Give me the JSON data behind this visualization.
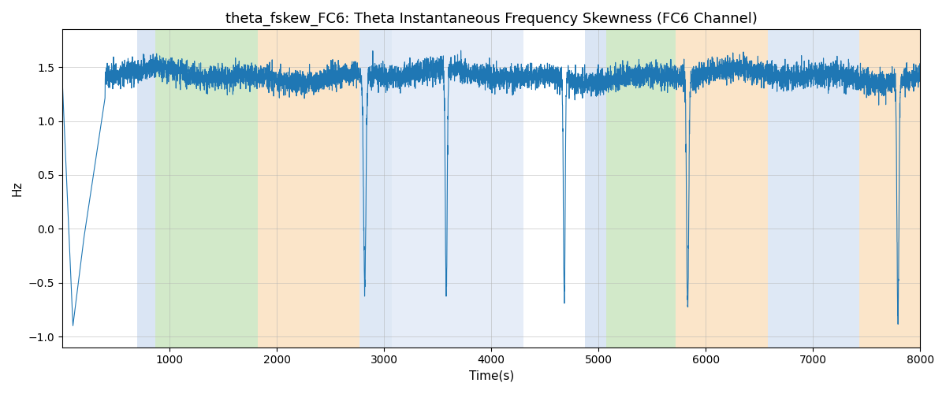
{
  "title": "theta_fskew_FC6: Theta Instantaneous Frequency Skewness (FC6 Channel)",
  "xlabel": "Time(s)",
  "ylabel": "Hz",
  "xlim": [
    0,
    8000
  ],
  "ylim": [
    -1.1,
    1.85
  ],
  "yticks": [
    -1.0,
    -0.5,
    0.0,
    0.5,
    1.0,
    1.5
  ],
  "xticks": [
    1000,
    2000,
    3000,
    4000,
    5000,
    6000,
    7000,
    8000
  ],
  "line_color": "#1f77b4",
  "line_width": 0.8,
  "background_color": "#ffffff",
  "grid_color": "#b0b0b0",
  "bands": [
    {
      "start": 700,
      "end": 870,
      "color": "#aec6e8",
      "alpha": 0.45
    },
    {
      "start": 870,
      "end": 1820,
      "color": "#8fc87a",
      "alpha": 0.4
    },
    {
      "start": 1820,
      "end": 2770,
      "color": "#f5c07a",
      "alpha": 0.4
    },
    {
      "start": 2770,
      "end": 3070,
      "color": "#aec6e8",
      "alpha": 0.4
    },
    {
      "start": 3070,
      "end": 4300,
      "color": "#aec6e8",
      "alpha": 0.3
    },
    {
      "start": 4870,
      "end": 5070,
      "color": "#aec6e8",
      "alpha": 0.45
    },
    {
      "start": 5070,
      "end": 5720,
      "color": "#8fc87a",
      "alpha": 0.4
    },
    {
      "start": 5720,
      "end": 6580,
      "color": "#f5c07a",
      "alpha": 0.4
    },
    {
      "start": 6580,
      "end": 7430,
      "color": "#aec6e8",
      "alpha": 0.4
    },
    {
      "start": 7430,
      "end": 8000,
      "color": "#f5c07a",
      "alpha": 0.4
    }
  ],
  "title_fontsize": 13,
  "n_points": 8000,
  "seed": 42
}
